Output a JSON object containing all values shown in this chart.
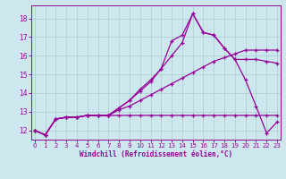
{
  "xlabel": "Windchill (Refroidissement éolien,°C)",
  "bg_color": "#cce8ee",
  "grid_color": "#aacccc",
  "line_color": "#990099",
  "x_ticks": [
    0,
    1,
    2,
    3,
    4,
    5,
    6,
    7,
    8,
    9,
    10,
    11,
    12,
    13,
    14,
    15,
    16,
    17,
    18,
    19,
    20,
    21,
    22,
    23
  ],
  "y_ticks": [
    12,
    13,
    14,
    15,
    16,
    17,
    18
  ],
  "ylim": [
    11.5,
    18.7
  ],
  "xlim": [
    -0.3,
    23.3
  ],
  "line_flat_x": [
    0,
    1,
    2,
    3,
    4,
    5,
    6,
    7,
    8,
    9,
    10,
    11,
    12,
    13,
    14,
    15,
    16,
    17,
    18,
    19,
    20,
    21,
    22,
    23
  ],
  "line_flat_y": [
    12.0,
    11.75,
    12.6,
    12.7,
    12.7,
    12.8,
    12.8,
    12.8,
    12.8,
    12.8,
    12.8,
    12.8,
    12.8,
    12.8,
    12.8,
    12.8,
    12.8,
    12.8,
    12.8,
    12.8,
    12.8,
    12.8,
    12.8,
    12.8
  ],
  "line_gentle_x": [
    0,
    1,
    2,
    3,
    4,
    5,
    6,
    7,
    8,
    9,
    10,
    11,
    12,
    13,
    14,
    15,
    16,
    17,
    18,
    19,
    20,
    21,
    22,
    23
  ],
  "line_gentle_y": [
    12.0,
    11.75,
    12.6,
    12.7,
    12.7,
    12.8,
    12.8,
    12.8,
    13.1,
    13.3,
    13.6,
    13.9,
    14.2,
    14.5,
    14.8,
    15.1,
    15.4,
    15.7,
    15.9,
    16.1,
    16.3,
    16.3,
    16.3,
    16.3
  ],
  "line_peak_x": [
    0,
    1,
    2,
    3,
    4,
    5,
    6,
    7,
    8,
    9,
    10,
    11,
    12,
    13,
    14,
    15,
    16,
    17,
    18,
    19,
    20,
    21,
    22,
    23
  ],
  "line_peak_y": [
    12.0,
    11.75,
    12.6,
    12.7,
    12.7,
    12.8,
    12.8,
    12.8,
    13.2,
    13.6,
    14.1,
    14.6,
    15.3,
    16.8,
    17.1,
    18.25,
    17.25,
    17.1,
    16.4,
    15.8,
    15.8,
    15.8,
    15.7,
    15.6
  ],
  "line_zigzag_x": [
    0,
    1,
    2,
    3,
    4,
    5,
    6,
    7,
    8,
    9,
    10,
    11,
    12,
    13,
    14,
    15,
    16,
    17,
    18,
    19,
    20,
    21,
    22,
    23
  ],
  "line_zigzag_y": [
    12.0,
    11.75,
    12.6,
    12.7,
    12.7,
    12.8,
    12.8,
    12.8,
    13.2,
    13.6,
    14.2,
    14.7,
    15.3,
    16.0,
    16.7,
    18.25,
    17.25,
    17.1,
    16.4,
    15.8,
    14.7,
    13.3,
    11.85,
    12.45
  ]
}
